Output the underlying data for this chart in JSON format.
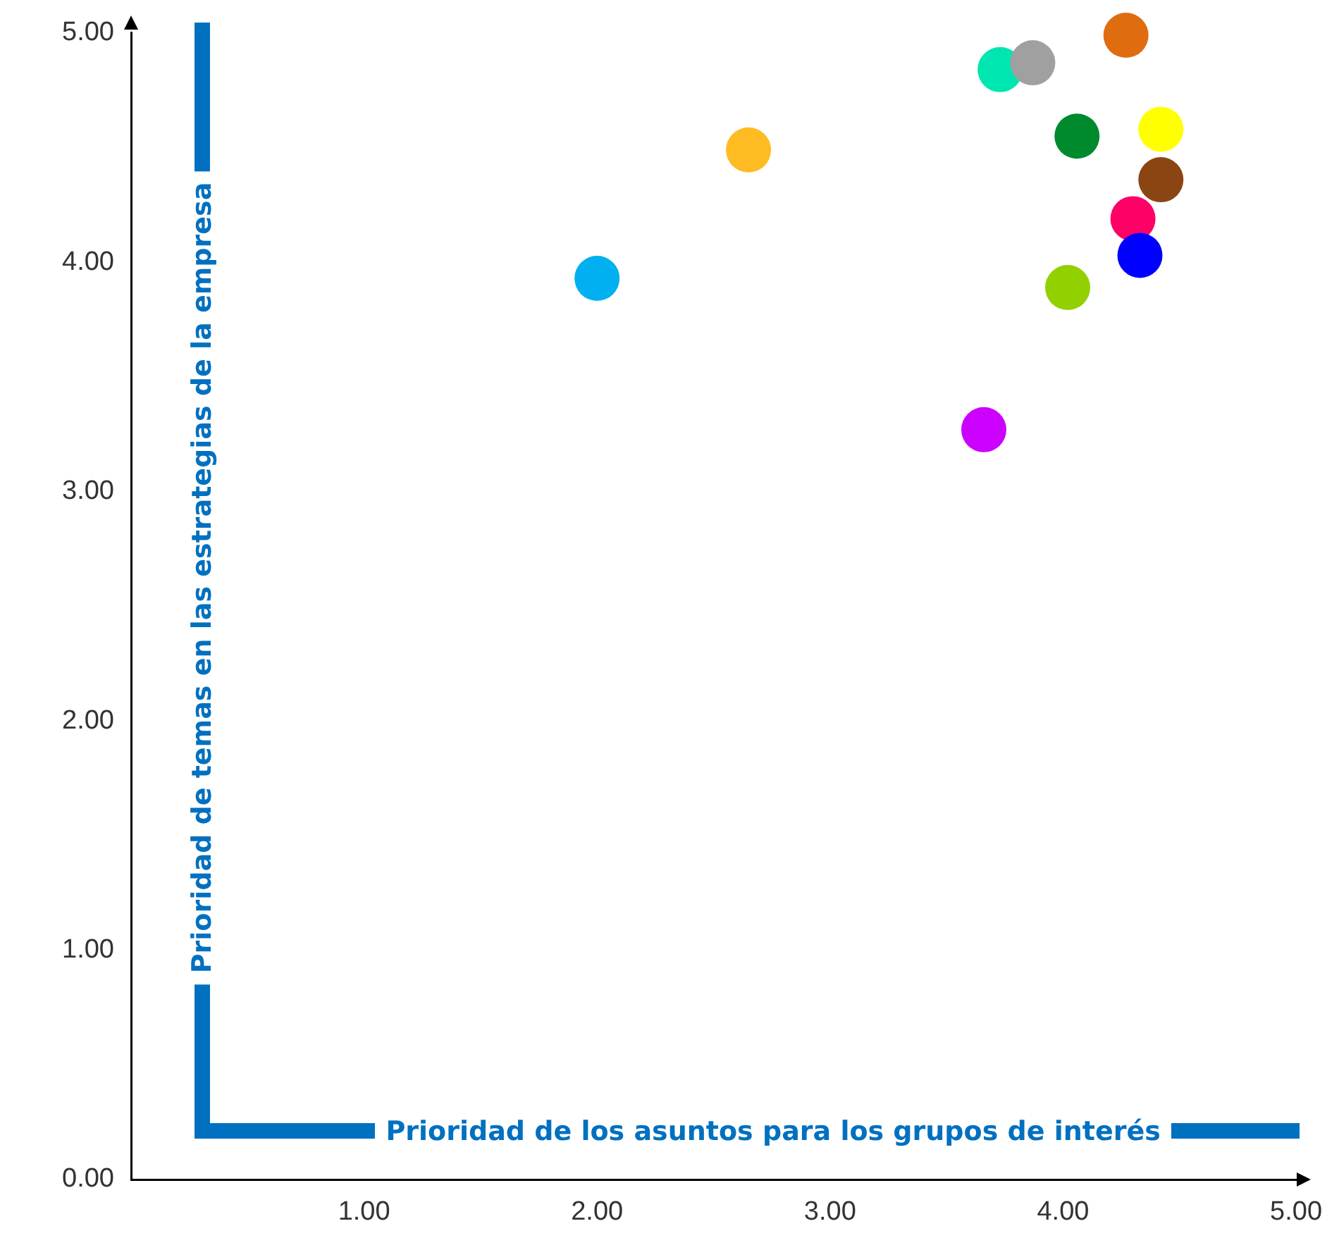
{
  "chart_data": {
    "type": "scatter",
    "xlabel": "Prioridad de los asuntos para los grupos de interés",
    "ylabel": "Prioridad de temas en las estrategias de la empresa",
    "x": [
      2.0,
      2.65,
      3.66,
      3.73,
      3.87,
      4.27,
      4.06,
      4.42,
      4.42,
      4.3,
      4.33,
      4.02
    ],
    "values": [
      3.93,
      4.49,
      3.27,
      4.84,
      4.87,
      4.99,
      4.55,
      4.58,
      4.36,
      4.19,
      4.03,
      3.89
    ],
    "colors": [
      "#00b0f0",
      "#ffbb22",
      "#cc00ff",
      "#00e6b0",
      "#a0a0a0",
      "#e06c10",
      "#008a2e",
      "#ffff00",
      "#8b4513",
      "#ff0066",
      "#0000ff",
      "#92d000"
    ],
    "marker": "circle",
    "xlim": [
      0,
      5
    ],
    "xticks": [
      {
        "value": 1,
        "label": "1.00"
      },
      {
        "value": 2,
        "label": "2.00"
      },
      {
        "value": 3,
        "label": "3.00"
      },
      {
        "value": 4,
        "label": "4.00"
      },
      {
        "value": 5,
        "label": "5.00"
      }
    ],
    "ylim": [
      0,
      5
    ],
    "yticks": [
      {
        "value": 0,
        "label": "0.00"
      },
      {
        "value": 1,
        "label": "1.00"
      },
      {
        "value": 2,
        "label": "2.00"
      },
      {
        "value": 3,
        "label": "3.00"
      },
      {
        "value": 4,
        "label": "4.00"
      },
      {
        "value": 5,
        "label": "5.00"
      }
    ],
    "grid": false,
    "legend": false
  }
}
